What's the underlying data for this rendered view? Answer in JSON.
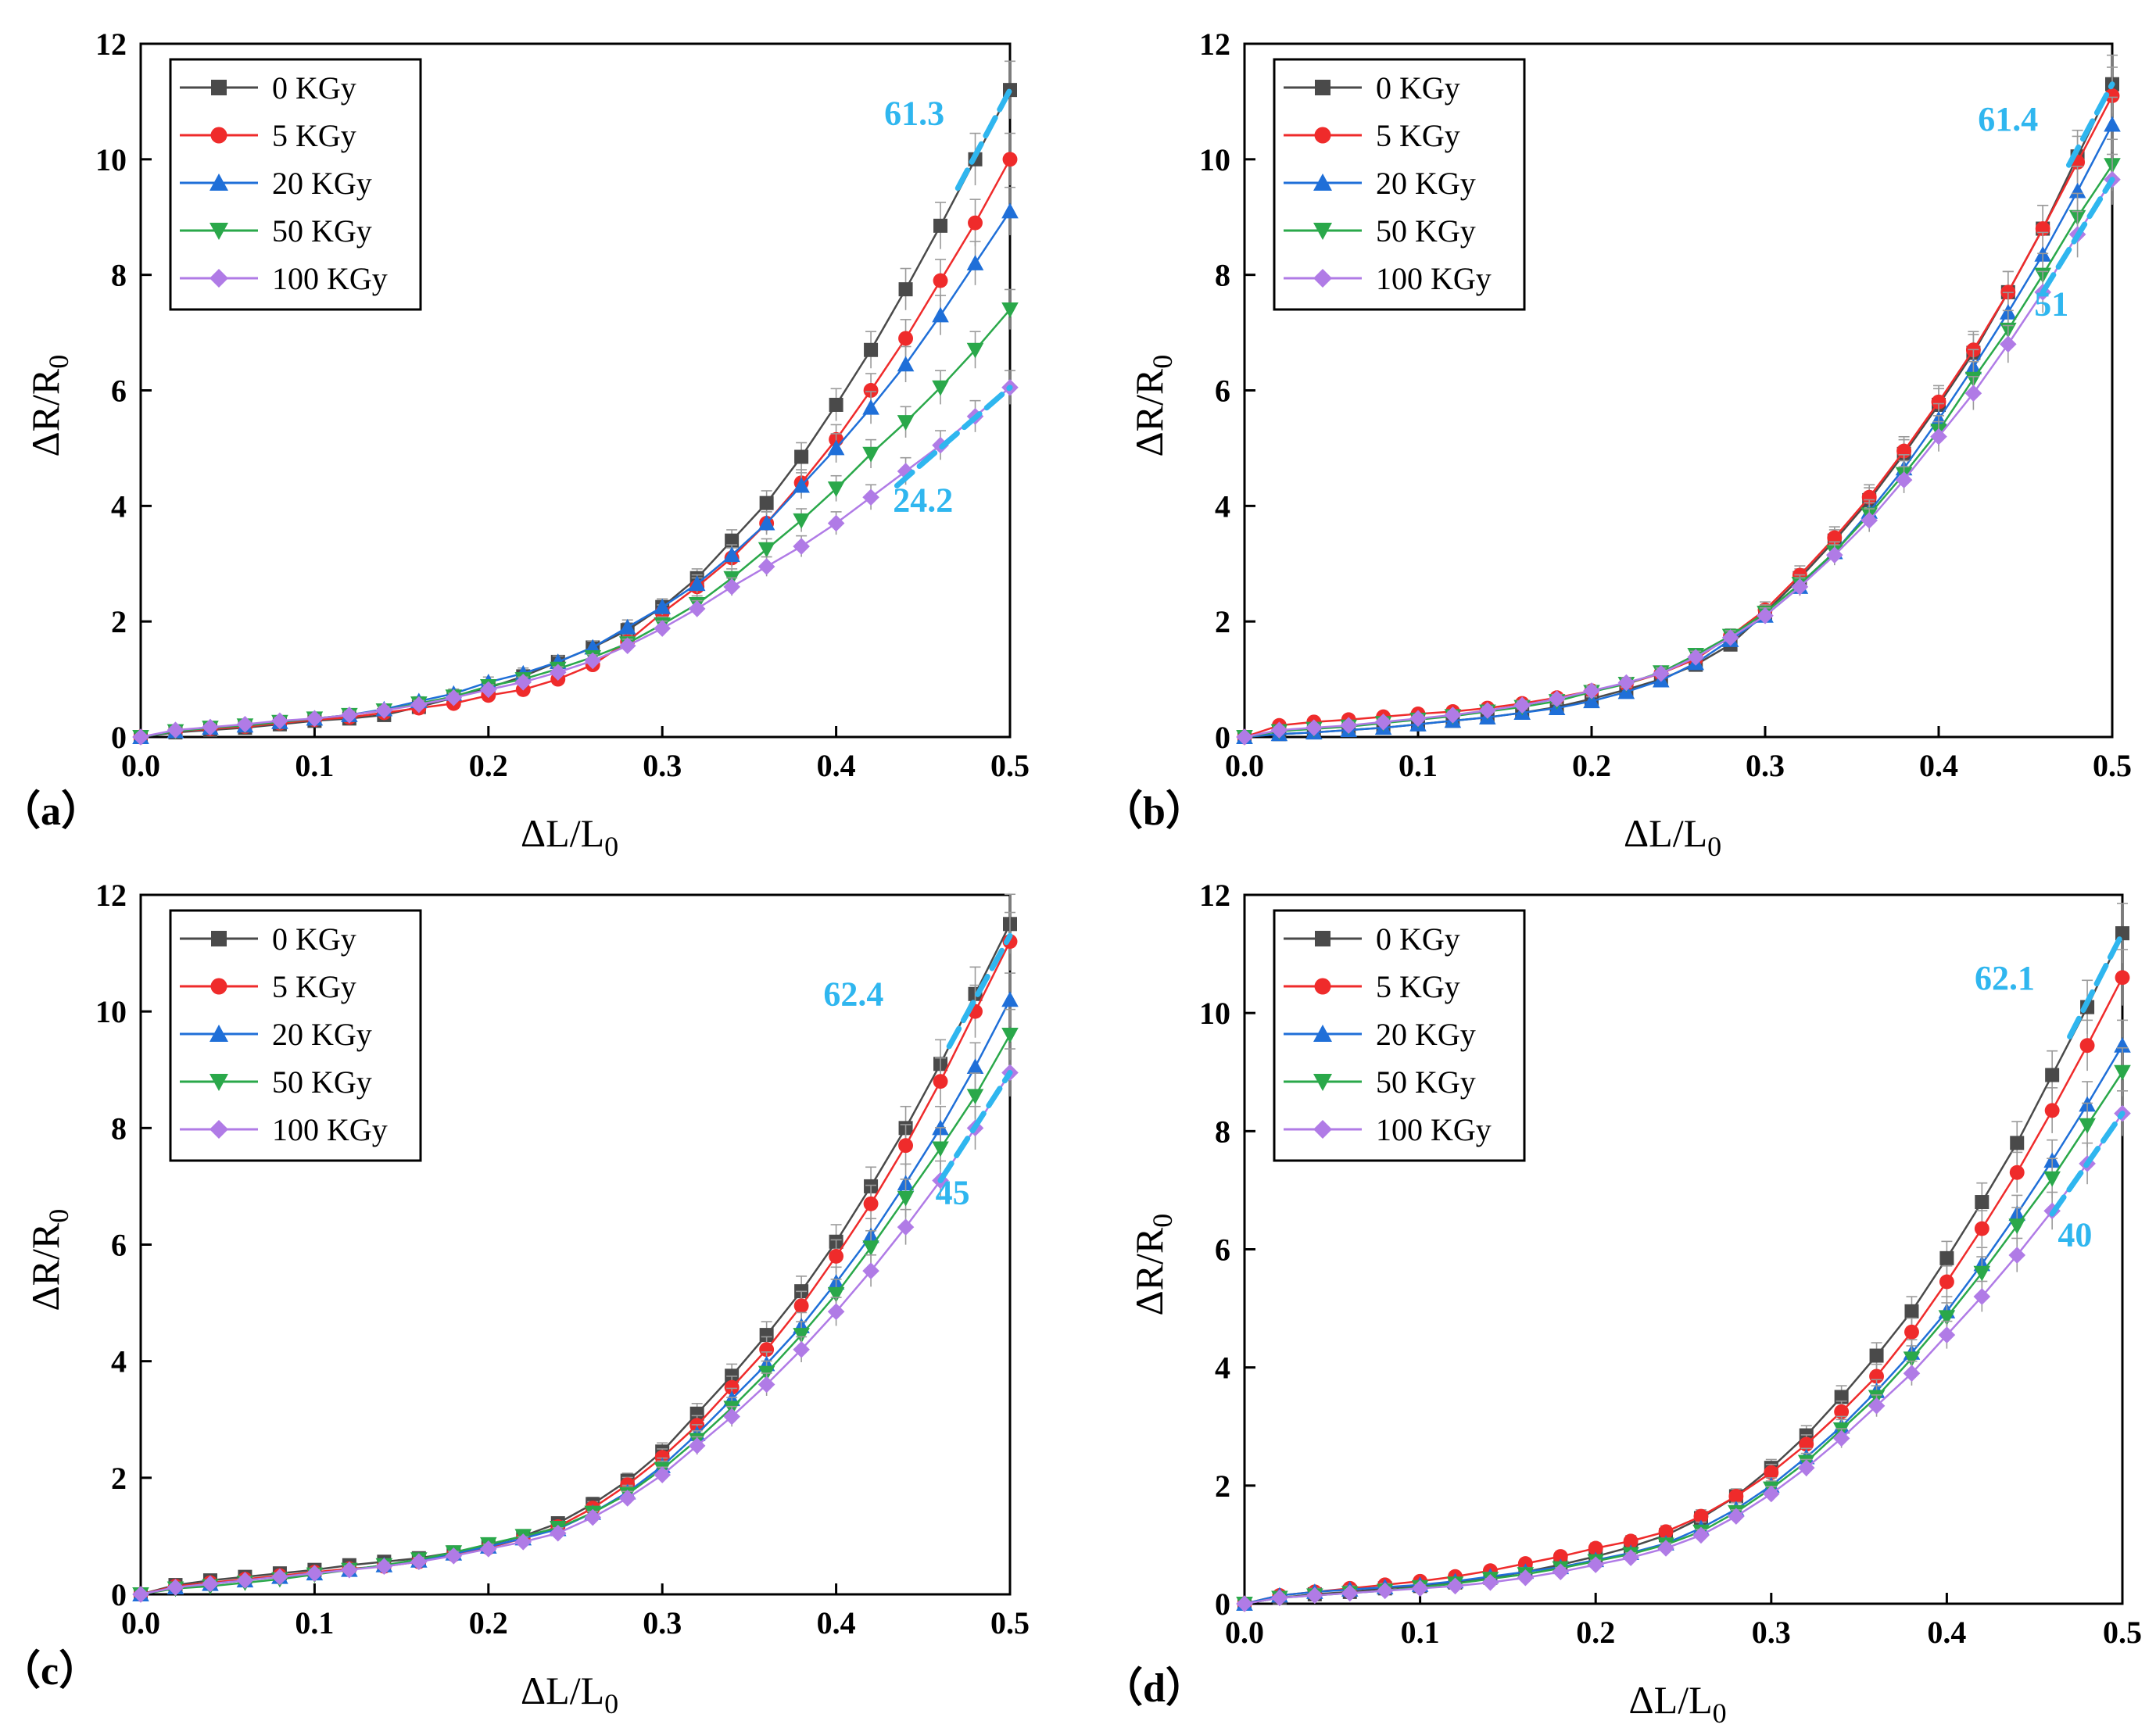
{
  "colors": {
    "s0": "#4a4a4a",
    "s1": "#ef2b2b",
    "s2": "#1f6fd8",
    "s3": "#2aa84a",
    "s4": "#b07be6",
    "annotation": "#2fb6ef"
  },
  "chart_data": [
    {
      "type": "line",
      "panel_label": "（a）",
      "xlabel": "ΔL/L0",
      "ylabel": "ΔR/R0",
      "xlim": [
        0,
        0.5
      ],
      "ylim": [
        0,
        12
      ],
      "xticks": [
        "0.0",
        "0.1",
        "0.2",
        "0.3",
        "0.4",
        "0.5"
      ],
      "yticks": [
        "0",
        "2",
        "4",
        "6",
        "8",
        "10",
        "12"
      ],
      "legend_position": "top-left",
      "x": [
        0,
        0.02,
        0.04,
        0.06,
        0.08,
        0.1,
        0.12,
        0.14,
        0.16,
        0.18,
        0.2,
        0.22,
        0.24,
        0.26,
        0.28,
        0.3,
        0.32,
        0.34,
        0.36,
        0.38,
        0.4,
        0.42,
        0.44,
        0.46,
        0.48,
        0.5
      ],
      "series": [
        {
          "name": "0 KGy",
          "marker": "square",
          "values": [
            0,
            0.08,
            0.12,
            0.16,
            0.22,
            0.28,
            0.32,
            0.38,
            0.52,
            0.68,
            0.85,
            1.05,
            1.3,
            1.55,
            1.85,
            2.25,
            2.75,
            3.4,
            4.05,
            4.85,
            5.75,
            6.7,
            7.75,
            8.85,
            10.0,
            11.2
          ]
        },
        {
          "name": "5 KGy",
          "marker": "circle",
          "values": [
            0,
            0.1,
            0.14,
            0.18,
            0.24,
            0.3,
            0.34,
            0.42,
            0.5,
            0.58,
            0.72,
            0.82,
            1.0,
            1.25,
            1.65,
            2.15,
            2.6,
            3.1,
            3.7,
            4.4,
            5.15,
            6.0,
            6.9,
            7.9,
            8.9,
            10.0
          ]
        },
        {
          "name": "20 KGy",
          "marker": "triangle-up",
          "values": [
            0,
            0.1,
            0.16,
            0.2,
            0.26,
            0.32,
            0.38,
            0.48,
            0.62,
            0.75,
            0.95,
            1.1,
            1.3,
            1.55,
            1.9,
            2.25,
            2.65,
            3.15,
            3.7,
            4.35,
            5.0,
            5.7,
            6.45,
            7.3,
            8.2,
            9.1
          ]
        },
        {
          "name": "50 KGy",
          "marker": "triangle-down",
          "values": [
            0,
            0.1,
            0.16,
            0.2,
            0.26,
            0.32,
            0.38,
            0.46,
            0.58,
            0.7,
            0.88,
            1.0,
            1.18,
            1.38,
            1.62,
            1.95,
            2.3,
            2.75,
            3.25,
            3.75,
            4.3,
            4.9,
            5.45,
            6.05,
            6.7,
            7.4
          ]
        },
        {
          "name": "100 KGy",
          "marker": "diamond",
          "values": [
            0,
            0.12,
            0.17,
            0.22,
            0.28,
            0.32,
            0.38,
            0.46,
            0.56,
            0.68,
            0.82,
            0.95,
            1.12,
            1.32,
            1.58,
            1.88,
            2.22,
            2.6,
            2.95,
            3.3,
            3.7,
            4.15,
            4.6,
            5.05,
            5.55,
            6.05
          ]
        }
      ],
      "annotations": [
        {
          "text": "61.3",
          "x": 0.445,
          "y": 10.6
        },
        {
          "text": "24.2",
          "x": 0.45,
          "y": 3.9
        }
      ],
      "fit_lines": [
        {
          "x": [
            0.47,
            0.5
          ],
          "y": [
            9.5,
            11.2
          ]
        },
        {
          "x": [
            0.435,
            0.5
          ],
          "y": [
            4.35,
            6.05
          ]
        }
      ]
    },
    {
      "type": "line",
      "panel_label": "（b）",
      "xlabel": "ΔL/L0",
      "ylabel": "ΔR/R0",
      "xlim": [
        0,
        0.5
      ],
      "ylim": [
        0,
        12
      ],
      "xticks": [
        "0.0",
        "0.1",
        "0.2",
        "0.3",
        "0.4",
        "0.5"
      ],
      "yticks": [
        "0",
        "2",
        "4",
        "6",
        "8",
        "10",
        "12"
      ],
      "legend_position": "top-left",
      "x": [
        0,
        0.02,
        0.04,
        0.06,
        0.08,
        0.1,
        0.12,
        0.14,
        0.16,
        0.18,
        0.2,
        0.22,
        0.24,
        0.26,
        0.28,
        0.3,
        0.32,
        0.34,
        0.36,
        0.38,
        0.4,
        0.42,
        0.44,
        0.46,
        0.48,
        0.5
      ],
      "series": [
        {
          "name": "0 KGy",
          "marker": "square",
          "values": [
            0,
            0.05,
            0.08,
            0.12,
            0.16,
            0.22,
            0.28,
            0.34,
            0.42,
            0.52,
            0.66,
            0.82,
            1.0,
            1.25,
            1.6,
            2.15,
            2.75,
            3.4,
            4.1,
            4.9,
            5.75,
            6.65,
            7.7,
            8.8,
            10.05,
            11.3
          ]
        },
        {
          "name": "5 KGy",
          "marker": "circle",
          "values": [
            0,
            0.2,
            0.26,
            0.3,
            0.35,
            0.4,
            0.44,
            0.5,
            0.58,
            0.68,
            0.8,
            0.92,
            1.1,
            1.35,
            1.75,
            2.2,
            2.8,
            3.45,
            4.15,
            4.95,
            5.8,
            6.7,
            7.7,
            8.8,
            9.95,
            11.1
          ]
        },
        {
          "name": "20 KGy",
          "marker": "triangle-up",
          "values": [
            0,
            0.05,
            0.08,
            0.12,
            0.16,
            0.22,
            0.28,
            0.34,
            0.42,
            0.5,
            0.62,
            0.78,
            0.98,
            1.28,
            1.68,
            2.1,
            2.6,
            3.2,
            3.9,
            4.65,
            5.5,
            6.4,
            7.35,
            8.35,
            9.45,
            10.6
          ]
        },
        {
          "name": "50 KGy",
          "marker": "triangle-down",
          "values": [
            0,
            0.1,
            0.14,
            0.18,
            0.24,
            0.3,
            0.36,
            0.44,
            0.52,
            0.62,
            0.78,
            0.92,
            1.12,
            1.42,
            1.75,
            2.15,
            2.65,
            3.2,
            3.85,
            4.55,
            5.3,
            6.2,
            7.05,
            8.0,
            9.0,
            9.9
          ]
        },
        {
          "name": "100 KGy",
          "marker": "diamond",
          "values": [
            0,
            0.12,
            0.16,
            0.2,
            0.26,
            0.32,
            0.38,
            0.46,
            0.55,
            0.66,
            0.8,
            0.94,
            1.1,
            1.38,
            1.72,
            2.1,
            2.6,
            3.15,
            3.75,
            4.45,
            5.2,
            5.95,
            6.8,
            7.7,
            8.7,
            9.65
          ]
        }
      ],
      "annotations": [
        {
          "text": "61.4",
          "x": 0.44,
          "y": 10.5
        },
        {
          "text": "51",
          "x": 0.465,
          "y": 7.3
        }
      ],
      "fit_lines": [
        {
          "x": [
            0.475,
            0.5
          ],
          "y": [
            9.9,
            11.3
          ]
        },
        {
          "x": [
            0.46,
            0.5
          ],
          "y": [
            7.7,
            9.65
          ]
        }
      ]
    },
    {
      "type": "line",
      "panel_label": "（c）",
      "xlabel": "ΔL/L0",
      "ylabel": "ΔR/R0",
      "xlim": [
        0,
        0.5
      ],
      "ylim": [
        0,
        12
      ],
      "xticks": [
        "0.0",
        "0.1",
        "0.2",
        "0.3",
        "0.4",
        "0.5"
      ],
      "yticks": [
        "0",
        "2",
        "4",
        "6",
        "8",
        "10",
        "12"
      ],
      "legend_position": "top-left",
      "x": [
        0,
        0.02,
        0.04,
        0.06,
        0.08,
        0.1,
        0.12,
        0.14,
        0.16,
        0.18,
        0.2,
        0.22,
        0.24,
        0.26,
        0.28,
        0.3,
        0.32,
        0.34,
        0.36,
        0.38,
        0.4,
        0.42,
        0.44,
        0.46,
        0.48,
        0.5
      ],
      "series": [
        {
          "name": "0 KGy",
          "marker": "square",
          "values": [
            0,
            0.16,
            0.24,
            0.3,
            0.36,
            0.42,
            0.5,
            0.56,
            0.62,
            0.72,
            0.85,
            1.0,
            1.22,
            1.55,
            1.95,
            2.45,
            3.1,
            3.75,
            4.45,
            5.2,
            6.05,
            7.0,
            8.0,
            9.1,
            10.3,
            11.5
          ]
        },
        {
          "name": "5 KGy",
          "marker": "circle",
          "values": [
            0,
            0.14,
            0.2,
            0.26,
            0.32,
            0.38,
            0.44,
            0.48,
            0.56,
            0.68,
            0.8,
            0.96,
            1.16,
            1.48,
            1.88,
            2.35,
            2.9,
            3.55,
            4.2,
            4.95,
            5.8,
            6.7,
            7.7,
            8.8,
            10.0,
            11.2
          ]
        },
        {
          "name": "20 KGy",
          "marker": "triangle-up",
          "values": [
            0,
            0.12,
            0.18,
            0.24,
            0.3,
            0.36,
            0.42,
            0.5,
            0.58,
            0.7,
            0.82,
            0.96,
            1.12,
            1.4,
            1.75,
            2.2,
            2.75,
            3.35,
            3.95,
            4.6,
            5.35,
            6.15,
            7.05,
            8.0,
            9.05,
            10.2
          ]
        },
        {
          "name": "50 KGy",
          "marker": "triangle-down",
          "values": [
            0,
            0.1,
            0.14,
            0.2,
            0.26,
            0.34,
            0.42,
            0.5,
            0.6,
            0.72,
            0.86,
            1.0,
            1.14,
            1.4,
            1.72,
            2.15,
            2.65,
            3.2,
            3.8,
            4.45,
            5.15,
            5.95,
            6.8,
            7.65,
            8.55,
            9.6
          ]
        },
        {
          "name": "100 KGy",
          "marker": "diamond",
          "values": [
            0,
            0.12,
            0.18,
            0.24,
            0.3,
            0.36,
            0.42,
            0.48,
            0.56,
            0.66,
            0.78,
            0.9,
            1.05,
            1.32,
            1.65,
            2.05,
            2.55,
            3.05,
            3.6,
            4.2,
            4.85,
            5.55,
            6.3,
            7.1,
            8.0,
            8.95
          ]
        }
      ],
      "annotations": [
        {
          "text": "62.4",
          "x": 0.41,
          "y": 10.1
        },
        {
          "text": "45",
          "x": 0.467,
          "y": 6.7
        }
      ],
      "fit_lines": [
        {
          "x": [
            0.465,
            0.5
          ],
          "y": [
            9.4,
            11.3
          ]
        },
        {
          "x": [
            0.46,
            0.5
          ],
          "y": [
            7.1,
            8.95
          ]
        }
      ]
    },
    {
      "type": "line",
      "panel_label": "（d）",
      "xlabel": "ΔL/L0",
      "ylabel": "ΔR/R0",
      "xlim": [
        0,
        0.5
      ],
      "ylim": [
        0,
        12
      ],
      "xticks": [
        "0.0",
        "0.1",
        "0.2",
        "0.3",
        "0.4",
        "0.5"
      ],
      "yticks": [
        "0",
        "2",
        "4",
        "6",
        "8",
        "10",
        "12"
      ],
      "legend_position": "top-left",
      "x": [
        0,
        0.02,
        0.04,
        0.06,
        0.08,
        0.1,
        0.12,
        0.14,
        0.16,
        0.18,
        0.2,
        0.22,
        0.24,
        0.26,
        0.28,
        0.3,
        0.32,
        0.34,
        0.36,
        0.38,
        0.4,
        0.42,
        0.44,
        0.46,
        0.48,
        0.5
      ],
      "series": [
        {
          "name": "0 KGy",
          "marker": "square",
          "values": [
            0,
            0.1,
            0.16,
            0.2,
            0.26,
            0.3,
            0.36,
            0.44,
            0.54,
            0.66,
            0.8,
            0.96,
            1.16,
            1.45,
            1.82,
            2.3,
            2.85,
            3.5,
            4.2,
            4.95,
            5.85,
            6.8,
            7.8,
            8.95,
            10.1,
            11.35
          ]
        },
        {
          "name": "5 KGy",
          "marker": "circle",
          "values": [
            0,
            0.14,
            0.2,
            0.26,
            0.32,
            0.38,
            0.46,
            0.56,
            0.68,
            0.8,
            0.94,
            1.06,
            1.22,
            1.48,
            1.82,
            2.22,
            2.7,
            3.25,
            3.85,
            4.6,
            5.45,
            6.35,
            7.3,
            8.35,
            9.45,
            10.6
          ]
        },
        {
          "name": "20 KGy",
          "marker": "triangle-up",
          "values": [
            0,
            0.14,
            0.2,
            0.24,
            0.28,
            0.32,
            0.38,
            0.46,
            0.54,
            0.62,
            0.74,
            0.86,
            1.02,
            1.28,
            1.6,
            2.0,
            2.48,
            3.0,
            3.6,
            4.25,
            4.95,
            5.75,
            6.6,
            7.5,
            8.45,
            9.45
          ]
        },
        {
          "name": "50 KGy",
          "marker": "triangle-down",
          "values": [
            0,
            0.1,
            0.14,
            0.18,
            0.22,
            0.28,
            0.34,
            0.42,
            0.5,
            0.6,
            0.72,
            0.84,
            1.0,
            1.22,
            1.55,
            1.95,
            2.4,
            2.95,
            3.5,
            4.15,
            4.85,
            5.6,
            6.4,
            7.2,
            8.1,
            9.0
          ]
        },
        {
          "name": "100 KGy",
          "marker": "diamond",
          "values": [
            0,
            0.1,
            0.14,
            0.18,
            0.22,
            0.26,
            0.3,
            0.36,
            0.44,
            0.54,
            0.66,
            0.78,
            0.94,
            1.16,
            1.48,
            1.86,
            2.3,
            2.8,
            3.35,
            3.9,
            4.55,
            5.2,
            5.9,
            6.65,
            7.45,
            8.3
          ]
        }
      ],
      "annotations": [
        {
          "text": "62.1",
          "x": 0.433,
          "y": 10.4
        },
        {
          "text": "40",
          "x": 0.473,
          "y": 6.05
        }
      ],
      "fit_lines": [
        {
          "x": [
            0.47,
            0.5
          ],
          "y": [
            9.6,
            11.35
          ]
        },
        {
          "x": [
            0.46,
            0.5
          ],
          "y": [
            6.6,
            8.3
          ]
        }
      ]
    }
  ]
}
